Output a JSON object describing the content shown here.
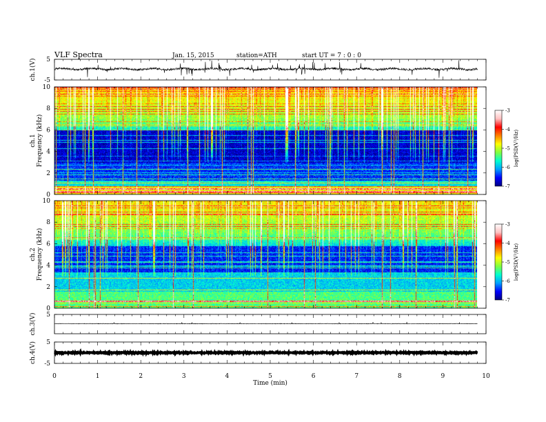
{
  "header": {
    "title": "VLF  Spectra",
    "date": "Jan. 15, 2015",
    "station": "station=ATH",
    "start": "start  UT  =   7  : 0  : 0"
  },
  "chart_data": {
    "type": "heatmap",
    "xlabel": "Time  (min)",
    "xlim": [
      0,
      10
    ],
    "x_ticks": [
      "0",
      "1",
      "2",
      "3",
      "4",
      "5",
      "6",
      "7",
      "8",
      "9",
      "10"
    ],
    "data_end_min": 9.8,
    "panels": [
      {
        "id": "ch1_wave",
        "type": "line",
        "ylabel": "ch.1(V)",
        "ylim": [
          -5,
          5
        ],
        "y_ticks": [
          "5",
          "-5"
        ],
        "baseline": 0.3,
        "noise_amplitude": "large"
      },
      {
        "id": "ch1_spec",
        "type": "heatmap",
        "ylabel_line1": "ch.1",
        "ylabel_line2": "Frequency  (kHz)",
        "ylim": [
          0,
          10
        ],
        "y_ticks": [
          "0",
          "2",
          "4",
          "6",
          "8",
          "10"
        ],
        "colorbar": {
          "label": "log(PSD(V²/Hz)",
          "range": [
            -7,
            -3
          ],
          "ticks": [
            "-3",
            "-4",
            "-5",
            "-6",
            "-7"
          ]
        }
      },
      {
        "id": "ch2_spec",
        "type": "heatmap",
        "ylabel_line1": "ch.2",
        "ylabel_line2": "Frequency  (kHz)",
        "ylim": [
          0,
          10
        ],
        "y_ticks": [
          "0",
          "2",
          "4",
          "6",
          "8",
          "10"
        ],
        "colorbar": {
          "label": "log(PSD(V²/Hz)",
          "range": [
            -7,
            -3
          ],
          "ticks": [
            "-3",
            "-4",
            "-5",
            "-6",
            "-7"
          ]
        }
      },
      {
        "id": "ch3_wave",
        "type": "line",
        "ylabel": "ch.3(V)",
        "ylim": [
          -5,
          5
        ],
        "y_ticks": [
          "5"
        ],
        "baseline": 0.2,
        "noise_amplitude": "small"
      },
      {
        "id": "ch4_wave",
        "type": "line",
        "ylabel": "ch.4(V)",
        "ylim": [
          -5,
          5
        ],
        "y_ticks": [
          "5",
          "-5"
        ],
        "baseline": 0.0,
        "noise_amplitude": "thick"
      }
    ],
    "colormap": [
      "#000080",
      "#0000ff",
      "#00a0ff",
      "#00ffd0",
      "#80ff40",
      "#ffff00",
      "#ff8000",
      "#ff0000",
      "#ffc0c0",
      "#ffffff"
    ]
  }
}
